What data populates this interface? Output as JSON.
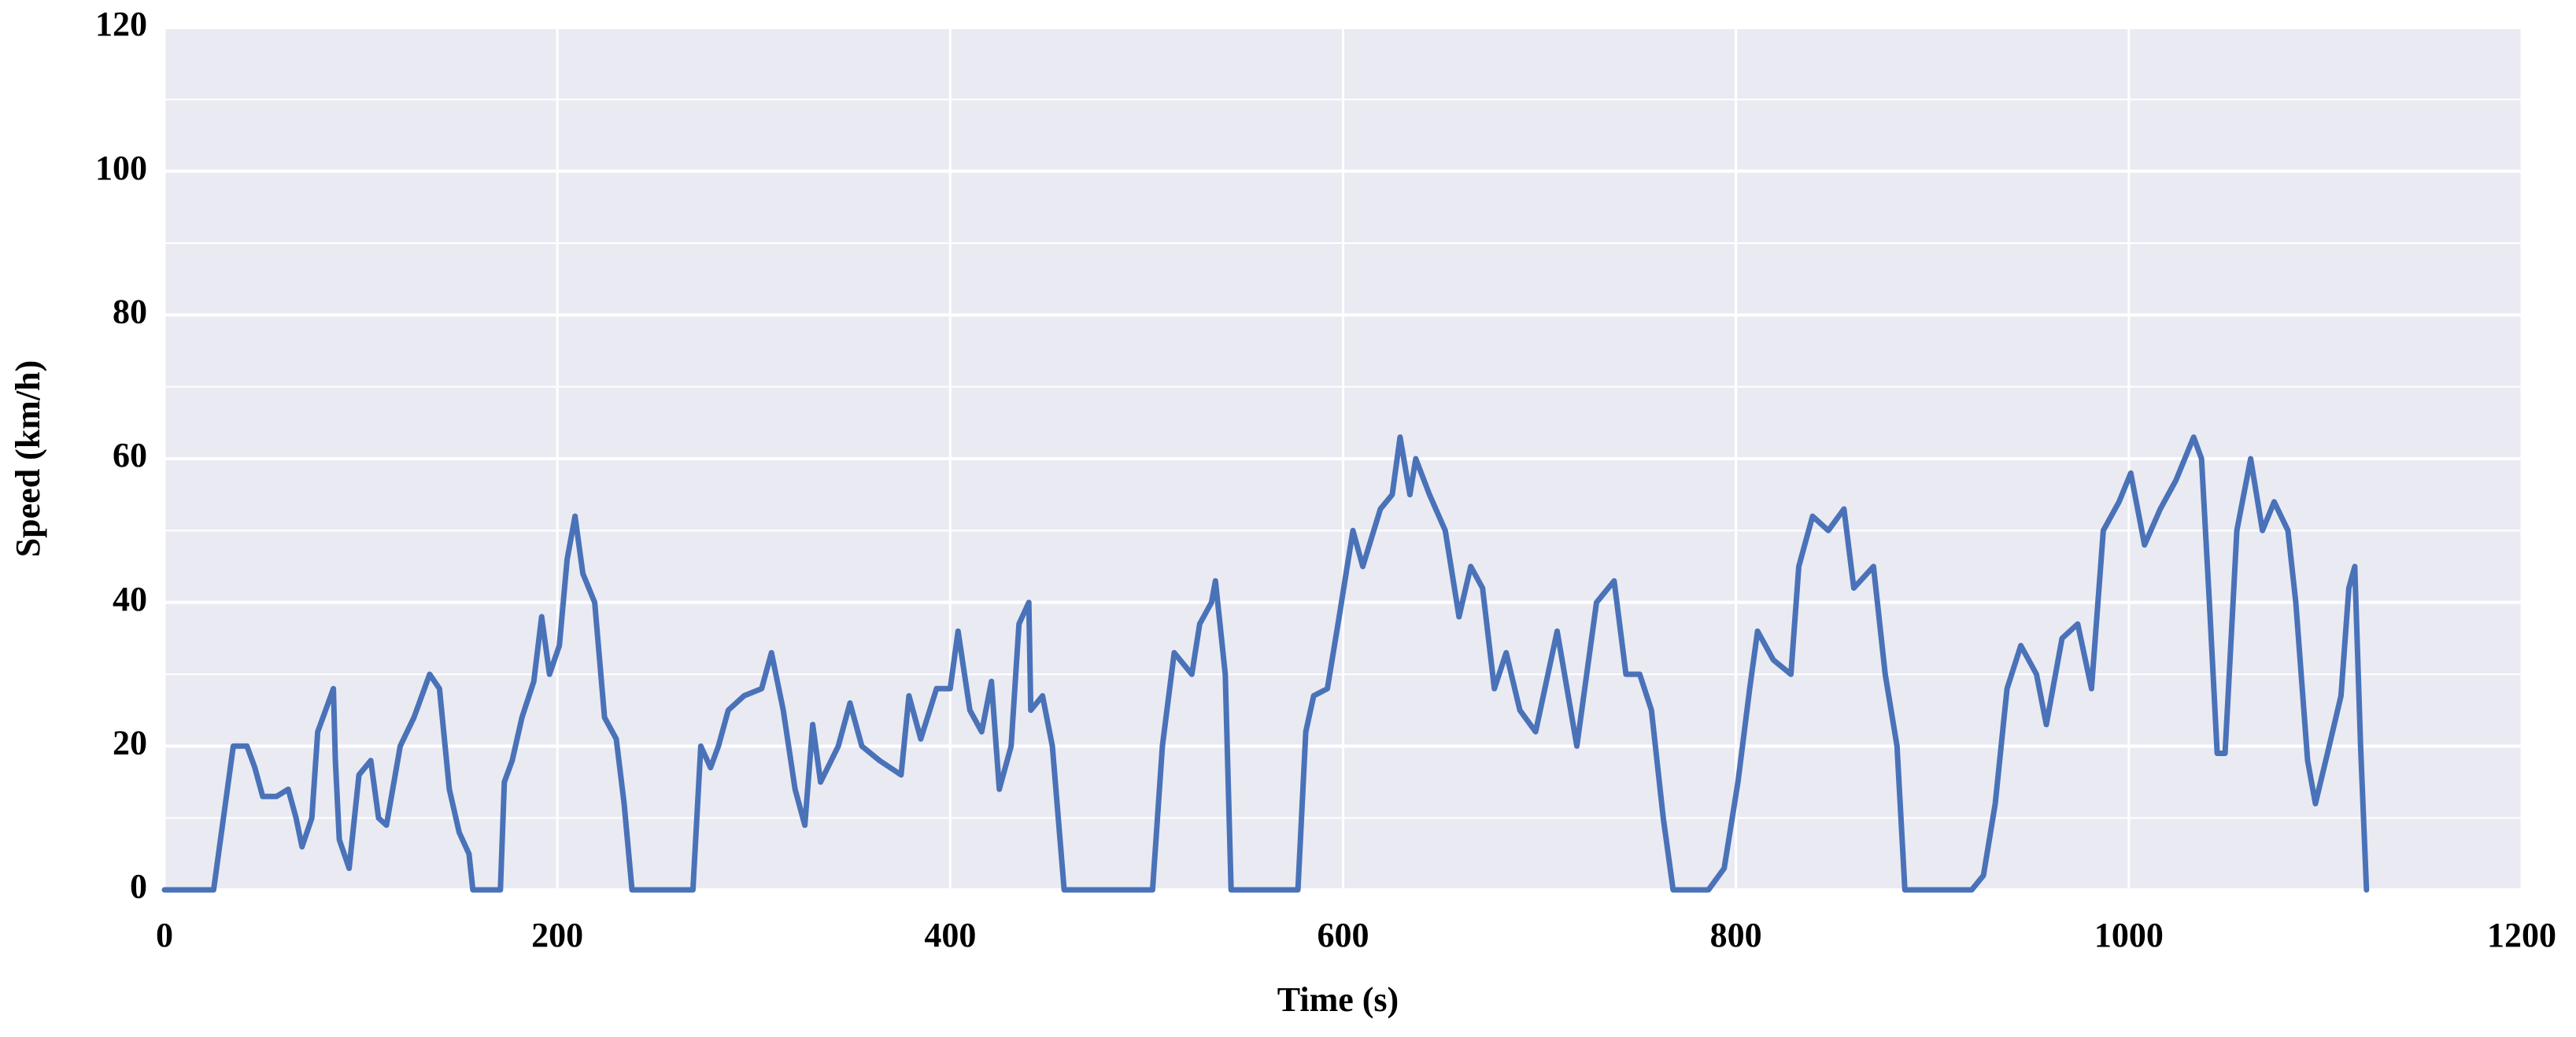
{
  "chart_data": {
    "type": "line",
    "xlabel": "Time (s)",
    "ylabel": "Speed (km/h)",
    "xlim": [
      0,
      1200
    ],
    "ylim": [
      0,
      120
    ],
    "xticks": [
      0,
      200,
      400,
      600,
      800,
      1000,
      1200
    ],
    "yticks": [
      0,
      20,
      40,
      60,
      80,
      100,
      120
    ],
    "y_minor_ticks": [
      10,
      30,
      50,
      70,
      90,
      110
    ],
    "grid": true,
    "background": "#eaeaf2",
    "x": [
      0,
      25,
      29,
      35,
      42,
      46,
      50,
      57,
      63,
      67,
      70,
      75,
      78,
      82,
      86,
      87,
      89,
      94,
      99,
      105,
      109,
      113,
      120,
      127,
      135,
      140,
      145,
      150,
      155,
      157,
      171,
      173,
      177,
      182,
      188,
      192,
      196,
      201,
      205,
      209,
      213,
      219,
      224,
      230,
      234,
      238,
      269,
      273,
      278,
      282,
      287,
      295,
      304,
      309,
      315,
      321,
      326,
      330,
      334,
      343,
      349,
      355,
      364,
      375,
      379,
      385,
      393,
      400,
      404,
      410,
      416,
      421,
      425,
      431,
      435,
      440,
      441,
      447,
      452,
      458,
      503,
      508,
      514,
      523,
      527,
      533,
      535,
      540,
      543,
      577,
      581,
      585,
      592,
      598,
      605,
      610,
      619,
      625,
      629,
      634,
      637,
      644,
      652,
      659,
      665,
      671,
      677,
      683,
      690,
      698,
      709,
      719,
      729,
      738,
      744,
      751,
      757,
      763,
      768,
      786,
      794,
      801,
      807,
      811,
      819,
      828,
      832,
      839,
      847,
      855,
      860,
      870,
      876,
      882,
      886,
      920,
      926,
      932,
      938,
      945,
      953,
      958,
      966,
      974,
      981,
      987,
      995,
      1001,
      1008,
      1016,
      1024,
      1033,
      1037,
      1041,
      1045,
      1049,
      1055,
      1062,
      1068,
      1074,
      1081,
      1085,
      1091,
      1095,
      1102,
      1108,
      1112,
      1115,
      1118,
      1121
    ],
    "series": [
      {
        "color": "#4a72b8",
        "values": [
          0,
          0,
          8,
          20,
          20,
          17,
          13,
          13,
          14,
          10,
          6,
          10,
          22,
          25,
          28,
          18,
          7,
          3,
          16,
          18,
          10,
          9,
          20,
          24,
          30,
          28,
          14,
          8,
          5,
          0,
          0,
          15,
          18,
          24,
          29,
          38,
          30,
          34,
          46,
          52,
          44,
          40,
          24,
          21,
          12,
          0,
          0,
          20,
          17,
          20,
          25,
          27,
          28,
          33,
          25,
          14,
          9,
          23,
          15,
          20,
          26,
          20,
          18,
          16,
          27,
          21,
          28,
          28,
          36,
          25,
          22,
          29,
          14,
          20,
          37,
          40,
          25,
          27,
          20,
          0,
          0,
          20,
          33,
          30,
          37,
          40,
          43,
          30,
          0,
          0,
          22,
          27,
          28,
          38,
          50,
          45,
          53,
          55,
          63,
          55,
          60,
          55,
          50,
          38,
          45,
          42,
          28,
          33,
          25,
          22,
          36,
          20,
          40,
          43,
          30,
          30,
          25,
          10,
          0,
          0,
          3,
          15,
          28,
          36,
          32,
          30,
          45,
          52,
          50,
          53,
          42,
          45,
          30,
          20,
          0,
          0,
          2,
          12,
          28,
          34,
          30,
          23,
          35,
          37,
          28,
          50,
          54,
          58,
          48,
          53,
          57,
          63,
          60,
          40,
          19,
          19,
          50,
          60,
          50,
          54,
          50,
          40,
          18,
          12,
          20,
          27,
          42,
          45,
          20,
          0
        ]
      }
    ]
  }
}
